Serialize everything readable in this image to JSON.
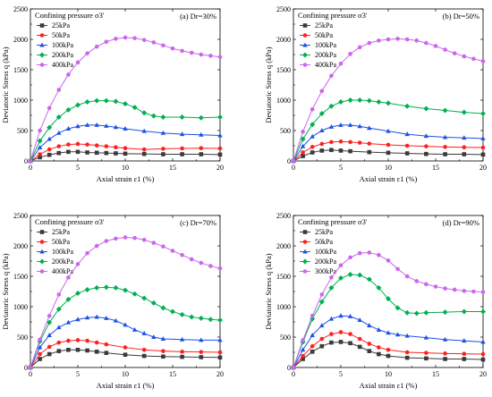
{
  "figure": {
    "chart_data": [
      {
        "type": "line",
        "panel": "(a)",
        "title": "(a) Dr=30%",
        "xlabel": "Axial strain ε1 (%)",
        "ylabel": "Deviatoric Stress q (kPa)",
        "xlim": [
          0,
          20
        ],
        "ylim": [
          0,
          2500
        ],
        "xticks": [
          0,
          5,
          10,
          15,
          20
        ],
        "yticks": [
          0,
          500,
          1000,
          1500,
          2000,
          2500
        ],
        "legend_title": "Confining pressure σ3'",
        "legend_position": "top-left",
        "series": [
          {
            "name": "25kPa",
            "color": "#3a3a3a",
            "marker": "square",
            "x": [
              0,
              1,
              2,
              3,
              4,
              5,
              6,
              7,
              8,
              9,
              10,
              12,
              14,
              16,
              18,
              20
            ],
            "y": [
              0,
              60,
              100,
              130,
              150,
              150,
              140,
              135,
              130,
              125,
              120,
              115,
              110,
              110,
              110,
              105
            ]
          },
          {
            "name": "50kPa",
            "color": "#ff2020",
            "marker": "circle",
            "x": [
              0,
              1,
              2,
              3,
              4,
              5,
              6,
              7,
              8,
              9,
              10,
              12,
              14,
              16,
              18,
              20
            ],
            "y": [
              0,
              110,
              190,
              240,
              270,
              280,
              270,
              255,
              240,
              225,
              210,
              190,
              200,
              205,
              210,
              205
            ]
          },
          {
            "name": "100kPa",
            "color": "#1e50e6",
            "marker": "triangle",
            "x": [
              0,
              1,
              2,
              3,
              4,
              5,
              6,
              7,
              8,
              9,
              10,
              12,
              14,
              16,
              18,
              20
            ],
            "y": [
              0,
              220,
              360,
              460,
              530,
              570,
              590,
              590,
              575,
              555,
              530,
              490,
              460,
              440,
              430,
              420
            ]
          },
          {
            "name": "200kPa",
            "color": "#00b050",
            "marker": "diamond",
            "x": [
              0,
              1,
              2,
              3,
              4,
              5,
              6,
              7,
              8,
              9,
              10,
              11,
              12,
              13,
              14,
              16,
              18,
              20
            ],
            "y": [
              0,
              330,
              550,
              720,
              840,
              920,
              970,
              990,
              990,
              980,
              940,
              880,
              790,
              740,
              720,
              720,
              710,
              720
            ]
          },
          {
            "name": "400kPa",
            "color": "#cc66ee",
            "marker": "circle",
            "x": [
              0,
              1,
              2,
              3,
              4,
              5,
              6,
              7,
              8,
              9,
              10,
              11,
              12,
              13,
              14,
              15,
              16,
              17,
              18,
              19,
              20
            ],
            "y": [
              0,
              500,
              870,
              1170,
              1420,
              1620,
              1770,
              1880,
              1960,
              2010,
              2030,
              2020,
              1990,
              1950,
              1900,
              1850,
              1810,
              1780,
              1750,
              1730,
              1710
            ]
          }
        ]
      },
      {
        "type": "line",
        "panel": "(b)",
        "title": "(b) Dr=50%",
        "xlabel": "Axial strain ε1 (%)",
        "ylabel": "Deviatoric Stress q (kPa)",
        "xlim": [
          0,
          20
        ],
        "ylim": [
          0,
          2500
        ],
        "xticks": [
          0,
          5,
          10,
          15,
          20
        ],
        "yticks": [
          0,
          500,
          1000,
          1500,
          2000,
          2500
        ],
        "legend_title": "Confining pressure σ3'",
        "legend_position": "top-left",
        "series": [
          {
            "name": "25kPa",
            "color": "#3a3a3a",
            "marker": "square",
            "x": [
              0,
              1,
              2,
              3,
              4,
              5,
              6,
              8,
              10,
              12,
              14,
              16,
              18,
              20
            ],
            "y": [
              0,
              80,
              140,
              170,
              180,
              170,
              160,
              145,
              135,
              125,
              115,
              110,
              110,
              105
            ]
          },
          {
            "name": "50kPa",
            "color": "#ff2020",
            "marker": "circle",
            "x": [
              0,
              1,
              2,
              3,
              4,
              5,
              6,
              7,
              8,
              10,
              12,
              14,
              16,
              18,
              20
            ],
            "y": [
              0,
              140,
              230,
              280,
              310,
              320,
              310,
              300,
              285,
              265,
              250,
              240,
              230,
              225,
              220
            ]
          },
          {
            "name": "100kPa",
            "color": "#1e50e6",
            "marker": "triangle",
            "x": [
              0,
              1,
              2,
              3,
              4,
              5,
              6,
              7,
              8,
              10,
              12,
              14,
              16,
              18,
              20
            ],
            "y": [
              0,
              240,
              400,
              500,
              560,
              590,
              590,
              570,
              540,
              490,
              440,
              410,
              390,
              380,
              370
            ]
          },
          {
            "name": "200kPa",
            "color": "#00b050",
            "marker": "diamond",
            "x": [
              0,
              1,
              2,
              3,
              4,
              5,
              6,
              7,
              8,
              9,
              10,
              12,
              14,
              16,
              18,
              20
            ],
            "y": [
              0,
              360,
              600,
              780,
              900,
              970,
              1000,
              1000,
              990,
              970,
              950,
              900,
              860,
              830,
              800,
              780
            ]
          },
          {
            "name": "400kPa",
            "color": "#cc66ee",
            "marker": "circle",
            "x": [
              0,
              1,
              2,
              3,
              4,
              5,
              6,
              7,
              8,
              9,
              10,
              11,
              12,
              13,
              14,
              15,
              16,
              17,
              18,
              19,
              20
            ],
            "y": [
              0,
              480,
              850,
              1150,
              1400,
              1600,
              1760,
              1870,
              1940,
              1980,
              2000,
              2010,
              2000,
              1980,
              1940,
              1890,
              1830,
              1770,
              1720,
              1680,
              1640
            ]
          }
        ]
      },
      {
        "type": "line",
        "panel": "(c)",
        "title": "(c) Dr=70%",
        "xlabel": "Axial strain ε1 (%)",
        "ylabel": "Deviatoric Stress q (kPa)",
        "xlim": [
          0,
          20
        ],
        "ylim": [
          0,
          2500
        ],
        "xticks": [
          0,
          5,
          10,
          15,
          20
        ],
        "yticks": [
          0,
          500,
          1000,
          1500,
          2000,
          2500
        ],
        "legend_title": "Confining pressure σ3'",
        "legend_position": "top-left",
        "series": [
          {
            "name": "25kPa",
            "color": "#3a3a3a",
            "marker": "square",
            "x": [
              0,
              1,
              2,
              3,
              4,
              5,
              6,
              7,
              8,
              10,
              12,
              14,
              16,
              18,
              20
            ],
            "y": [
              0,
              140,
              220,
              270,
              290,
              290,
              280,
              260,
              240,
              210,
              190,
              180,
              175,
              170,
              165
            ]
          },
          {
            "name": "50kPa",
            "color": "#ff2020",
            "marker": "circle",
            "x": [
              0,
              1,
              2,
              3,
              4,
              5,
              6,
              7,
              8,
              10,
              12,
              14,
              16,
              18,
              20
            ],
            "y": [
              0,
              220,
              340,
              410,
              440,
              450,
              440,
              410,
              380,
              330,
              290,
              270,
              260,
              255,
              250
            ]
          },
          {
            "name": "100kPa",
            "color": "#1e50e6",
            "marker": "triangle",
            "x": [
              0,
              1,
              2,
              3,
              4,
              5,
              6,
              7,
              8,
              9,
              10,
              11,
              12,
              13,
              14,
              16,
              18,
              20
            ],
            "y": [
              0,
              330,
              530,
              660,
              740,
              790,
              820,
              830,
              810,
              770,
              700,
              620,
              560,
              500,
              470,
              460,
              450,
              450
            ]
          },
          {
            "name": "200kPa",
            "color": "#00b050",
            "marker": "diamond",
            "x": [
              0,
              1,
              2,
              3,
              4,
              5,
              6,
              7,
              8,
              9,
              10,
              11,
              12,
              13,
              14,
              15,
              16,
              17,
              18,
              19,
              20
            ],
            "y": [
              0,
              430,
              740,
              960,
              1120,
              1220,
              1280,
              1310,
              1320,
              1310,
              1270,
              1210,
              1140,
              1060,
              980,
              920,
              870,
              830,
              810,
              790,
              780
            ]
          },
          {
            "name": "400kPa",
            "color": "#cc66ee",
            "marker": "circle",
            "x": [
              0,
              1,
              2,
              3,
              4,
              5,
              6,
              7,
              8,
              9,
              10,
              11,
              12,
              13,
              14,
              15,
              16,
              17,
              18,
              19,
              20
            ],
            "y": [
              0,
              460,
              850,
              1200,
              1480,
              1700,
              1880,
              2000,
              2080,
              2120,
              2140,
              2130,
              2100,
              2050,
              1990,
              1920,
              1850,
              1780,
              1720,
              1670,
              1630
            ]
          }
        ]
      },
      {
        "type": "line",
        "panel": "(d)",
        "title": "(d) Dr=90%",
        "xlabel": "Axial strain ε1 (%)",
        "ylabel": "Deviatoric Stress q (kPa)",
        "xlim": [
          0,
          20
        ],
        "ylim": [
          0,
          2500
        ],
        "xticks": [
          0,
          5,
          10,
          15,
          20
        ],
        "yticks": [
          0,
          500,
          1000,
          1500,
          2000,
          2500
        ],
        "legend_title": "Confining pressure σ3'",
        "legend_position": "top-left",
        "series": [
          {
            "name": "25kPa",
            "color": "#3a3a3a",
            "marker": "square",
            "x": [
              0,
              1,
              2,
              3,
              4,
              5,
              6,
              7,
              8,
              9,
              10,
              12,
              14,
              16,
              18,
              20
            ],
            "y": [
              0,
              140,
              260,
              350,
              410,
              420,
              400,
              340,
              270,
              220,
              190,
              160,
              150,
              140,
              140,
              130
            ]
          },
          {
            "name": "50kPa",
            "color": "#ff2020",
            "marker": "circle",
            "x": [
              0,
              1,
              2,
              3,
              4,
              5,
              6,
              7,
              8,
              9,
              10,
              12,
              14,
              16,
              18,
              20
            ],
            "y": [
              0,
              190,
              350,
              470,
              550,
              580,
              550,
              470,
              390,
              330,
              290,
              250,
              240,
              230,
              225,
              220
            ]
          },
          {
            "name": "100kPa",
            "color": "#1e50e6",
            "marker": "triangle",
            "x": [
              0,
              1,
              2,
              3,
              4,
              5,
              6,
              7,
              8,
              9,
              10,
              11,
              12,
              14,
              16,
              18,
              20
            ],
            "y": [
              0,
              290,
              530,
              690,
              800,
              850,
              840,
              780,
              690,
              620,
              570,
              540,
              520,
              490,
              460,
              440,
              420
            ]
          },
          {
            "name": "200kPa",
            "color": "#00b050",
            "marker": "diamond",
            "x": [
              0,
              1,
              2,
              3,
              4,
              5,
              6,
              7,
              8,
              9,
              10,
              11,
              12,
              13,
              14,
              16,
              18,
              20
            ],
            "y": [
              0,
              420,
              800,
              1080,
              1310,
              1470,
              1530,
              1520,
              1450,
              1310,
              1130,
              980,
              900,
              890,
              900,
              910,
              920,
              920
            ]
          },
          {
            "name": "300kPa",
            "color": "#cc66ee",
            "marker": "circle",
            "x": [
              0,
              1,
              2,
              3,
              4,
              5,
              6,
              7,
              8,
              9,
              10,
              11,
              12,
              13,
              14,
              15,
              16,
              17,
              18,
              19,
              20
            ],
            "y": [
              0,
              450,
              850,
              1200,
              1480,
              1680,
              1810,
              1880,
              1890,
              1850,
              1760,
              1620,
              1500,
              1420,
              1370,
              1330,
              1300,
              1280,
              1260,
              1250,
              1240
            ]
          }
        ]
      }
    ]
  }
}
